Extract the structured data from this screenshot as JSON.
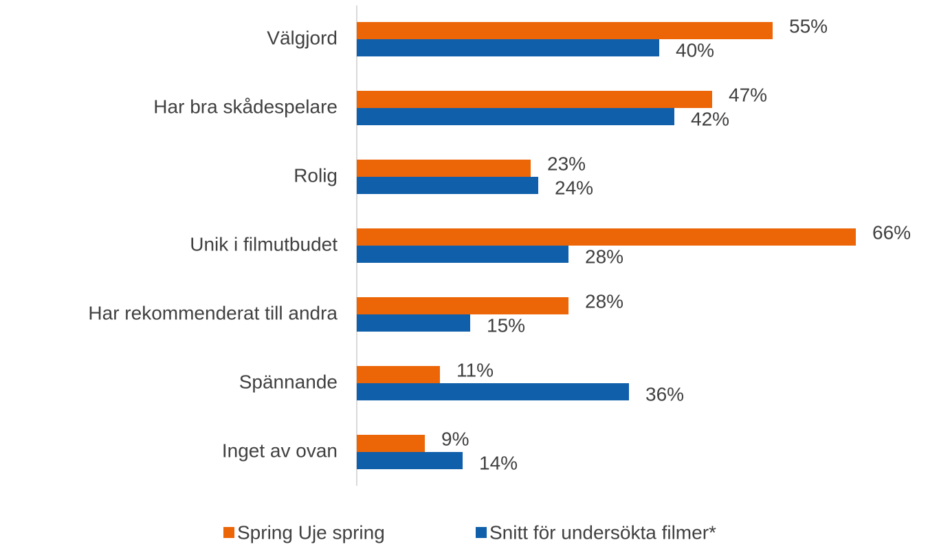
{
  "chart_data": {
    "type": "bar",
    "orientation": "horizontal",
    "categories": [
      "Välgjord",
      "Har bra skådespelare",
      "Rolig",
      "Unik i filmutbudet",
      "Har rekommenderat till andra",
      "Spännande",
      "Inget av ovan"
    ],
    "series": [
      {
        "name": "Spring Uje spring",
        "color": "#ec6608",
        "values": [
          55,
          47,
          23,
          66,
          28,
          11,
          9
        ],
        "value_labels": [
          "55%",
          "47%",
          "23%",
          "66%",
          "28%",
          "11%",
          "9%"
        ]
      },
      {
        "name": "Snitt för undersökta filmer*",
        "color": "#0f5fab",
        "values": [
          40,
          42,
          24,
          28,
          15,
          36,
          14
        ],
        "value_labels": [
          "40%",
          "42%",
          "24%",
          "28%",
          "15%",
          "36%",
          "14%"
        ]
      }
    ],
    "xlim": [
      0,
      70
    ],
    "legend": "bottom"
  }
}
